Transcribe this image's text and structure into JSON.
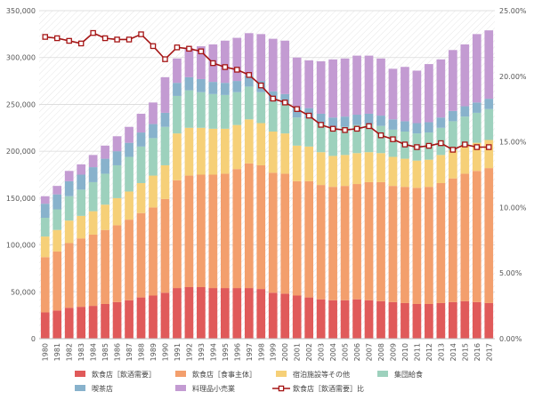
{
  "chart_data": {
    "type": "bar",
    "stacked": true,
    "title": "",
    "xlabel": "",
    "ylabel": "",
    "ylim": [
      0,
      350000
    ],
    "y2lim": [
      0,
      25
    ],
    "y_ticks": [
      "0",
      "50,000",
      "100,000",
      "150,000",
      "200,000",
      "250,000",
      "300,000",
      "350,000"
    ],
    "y2_ticks": [
      "0.00%",
      "5.00%",
      "10.00%",
      "15.00%",
      "20.00%",
      "25.00%"
    ],
    "categories": [
      "1980",
      "1981",
      "1982",
      "1983",
      "1984",
      "1985",
      "1986",
      "1987",
      "1988",
      "1989",
      "1990",
      "1991",
      "1992",
      "1993",
      "1994",
      "1995",
      "1996",
      "1997",
      "1998",
      "1999",
      "2000",
      "2001",
      "2002",
      "2003",
      "2004",
      "2005",
      "2006",
      "2007",
      "2008",
      "2009",
      "2010",
      "2011",
      "2012",
      "2013",
      "2014",
      "2015",
      "2016",
      "2017"
    ],
    "series": [
      {
        "name": "飲食店［飲酒需要］",
        "color": "#e05a5a",
        "values": [
          28000,
          30000,
          33000,
          34000,
          35000,
          37000,
          39000,
          41000,
          44000,
          46000,
          49000,
          54000,
          55000,
          55000,
          54000,
          54000,
          54000,
          54000,
          53000,
          49000,
          48000,
          46000,
          44000,
          42000,
          41000,
          41000,
          42000,
          41000,
          40000,
          39000,
          38000,
          37000,
          37000,
          38000,
          39000,
          40000,
          39000,
          38000
        ]
      },
      {
        "name": "飲食店［食事主体］",
        "color": "#f39f6d",
        "values": [
          59000,
          63000,
          69000,
          73000,
          76000,
          79000,
          82000,
          86000,
          90000,
          94000,
          100000,
          115000,
          119000,
          120000,
          121000,
          122000,
          127000,
          133000,
          132000,
          128000,
          128000,
          122000,
          124000,
          122000,
          121000,
          122000,
          123000,
          126000,
          127000,
          124000,
          124000,
          124000,
          125000,
          128000,
          132000,
          136000,
          140000,
          144000
        ]
      },
      {
        "name": "宿泊施設等その他",
        "color": "#f6d078",
        "values": [
          22000,
          23000,
          24000,
          24000,
          25000,
          27000,
          29000,
          30000,
          32000,
          34000,
          36000,
          50000,
          51000,
          50000,
          49000,
          48000,
          47000,
          47000,
          45000,
          44000,
          43000,
          38000,
          37000,
          35000,
          33000,
          33000,
          33000,
          32000,
          31000,
          31000,
          30000,
          29000,
          29000,
          30000,
          30000,
          30000,
          30000,
          30000
        ]
      },
      {
        "name": "集団給食",
        "color": "#9dd1bd",
        "values": [
          20000,
          22000,
          26000,
          28000,
          31000,
          33000,
          35000,
          37000,
          39000,
          40000,
          41000,
          40000,
          40000,
          38000,
          37000,
          36000,
          35000,
          35000,
          33000,
          32000,
          31000,
          30000,
          30000,
          30000,
          30000,
          30000,
          30000,
          30000,
          29000,
          29000,
          29000,
          29000,
          29000,
          29000,
          31000,
          31000,
          32000,
          33000
        ]
      },
      {
        "name": "喫茶店",
        "color": "#88b2cc",
        "values": [
          15000,
          16000,
          16000,
          16000,
          16000,
          16000,
          15000,
          15000,
          15000,
          15000,
          15000,
          14000,
          14000,
          14000,
          13000,
          13000,
          12000,
          12000,
          12000,
          11000,
          11000,
          11000,
          11000,
          11000,
          11000,
          11000,
          11000,
          11000,
          11000,
          11000,
          11000,
          11000,
          11000,
          11000,
          11000,
          11000,
          11000,
          11000
        ]
      },
      {
        "name": "料理品小売業",
        "color": "#c39bd2",
        "values": [
          8000,
          9000,
          11000,
          11000,
          13000,
          14000,
          16000,
          17000,
          20000,
          23000,
          38000,
          26000,
          31000,
          35000,
          40000,
          45000,
          46000,
          45000,
          50000,
          56000,
          57000,
          53000,
          51000,
          56000,
          62000,
          62000,
          63000,
          62000,
          61000,
          54000,
          58000,
          56000,
          62000,
          62000,
          65000,
          66000,
          73000,
          73000
        ]
      }
    ],
    "line_series": {
      "name": "飲食店［飲酒需要］比",
      "color": "#a51515",
      "axis": "right",
      "unit": "%",
      "values": [
        23.0,
        22.9,
        22.7,
        22.5,
        23.3,
        22.9,
        22.8,
        22.8,
        23.2,
        22.3,
        21.3,
        22.2,
        22.1,
        21.9,
        21.0,
        20.7,
        20.5,
        20.1,
        19.3,
        18.3,
        18.0,
        17.5,
        17.0,
        16.3,
        16.0,
        15.9,
        16.0,
        16.2,
        15.5,
        15.2,
        14.8,
        14.6,
        14.7,
        14.9,
        14.4,
        14.8,
        14.6,
        14.6
      ]
    },
    "grid": true,
    "legend_position": "bottom"
  }
}
